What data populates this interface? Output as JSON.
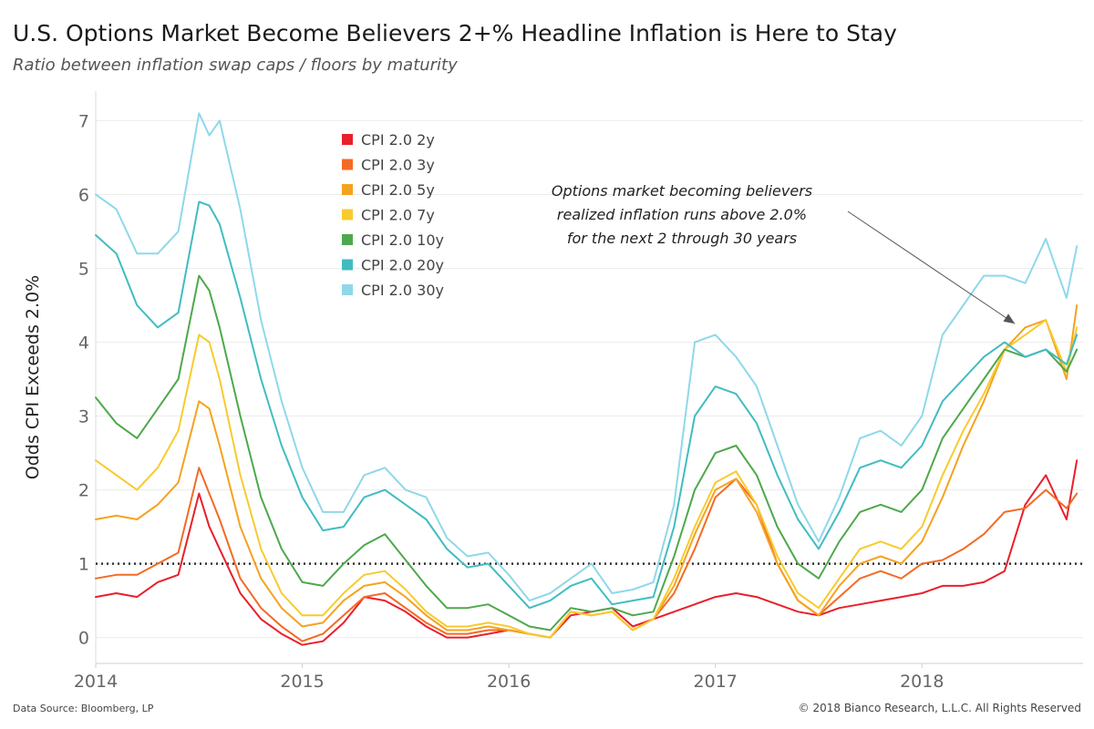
{
  "header": {
    "title": "U.S. Options Market Become Believers 2+% Headline Inflation is Here to Stay",
    "subtitle": "Ratio between inflation swap caps / floors by maturity"
  },
  "footer": {
    "source": "Data Source: Bloomberg, LP",
    "copyright": "© 2018 Bianco Research, L.L.C. All Rights Reserved"
  },
  "chart_data": {
    "type": "line",
    "title": "U.S. Options Market Become Believers 2+% Headline Inflation is Here to Stay",
    "subtitle": "Ratio between inflation swap caps / floors by maturity",
    "xlabel": "",
    "ylabel": "Odds CPI Exceeds 2.0%",
    "xlim": [
      2014.0,
      2018.78
    ],
    "ylim": [
      -0.35,
      7.4
    ],
    "x_ticks": [
      2014,
      2015,
      2016,
      2017,
      2018
    ],
    "x_tick_labels": [
      "2014",
      "2015",
      "2016",
      "2017",
      "2018"
    ],
    "y_ticks": [
      0,
      1,
      2,
      3,
      4,
      5,
      6,
      7
    ],
    "y_tick_labels": [
      "0",
      "1",
      "2",
      "3",
      "4",
      "5",
      "6",
      "7"
    ],
    "grid": "horizontal",
    "legend": "top-left",
    "reference_line": {
      "y": 1,
      "style": "dotted"
    },
    "annotation": {
      "lines": [
        "Options market becoming believers",
        "realized inflation runs above 2.0%",
        "for the next 2 through 30 years"
      ],
      "arrow_to": {
        "x": 2018.45,
        "y": 4.25
      }
    },
    "x": [
      2014.0,
      2014.1,
      2014.2,
      2014.3,
      2014.4,
      2014.5,
      2014.55,
      2014.6,
      2014.7,
      2014.8,
      2014.9,
      2015.0,
      2015.1,
      2015.2,
      2015.3,
      2015.4,
      2015.5,
      2015.6,
      2015.7,
      2015.8,
      2015.9,
      2016.0,
      2016.1,
      2016.2,
      2016.3,
      2016.4,
      2016.5,
      2016.6,
      2016.7,
      2016.8,
      2016.9,
      2017.0,
      2017.1,
      2017.2,
      2017.3,
      2017.4,
      2017.5,
      2017.6,
      2017.7,
      2017.8,
      2017.9,
      2018.0,
      2018.1,
      2018.2,
      2018.3,
      2018.4,
      2018.5,
      2018.6,
      2018.7,
      2018.75
    ],
    "series": [
      {
        "name": "CPI 2.0 2y",
        "color": "#e8202a",
        "values": [
          0.55,
          0.6,
          0.55,
          0.75,
          0.85,
          1.95,
          1.5,
          1.2,
          0.6,
          0.25,
          0.05,
          -0.1,
          -0.05,
          0.2,
          0.55,
          0.5,
          0.35,
          0.15,
          0.0,
          0.0,
          0.05,
          0.1,
          0.05,
          0.0,
          0.3,
          0.35,
          0.4,
          0.15,
          0.25,
          0.35,
          0.45,
          0.55,
          0.6,
          0.55,
          0.45,
          0.35,
          0.3,
          0.4,
          0.45,
          0.5,
          0.55,
          0.6,
          0.7,
          0.7,
          0.75,
          0.9,
          1.8,
          2.2,
          1.6,
          2.4
        ]
      },
      {
        "name": "CPI 2.0 3y",
        "color": "#f46a25",
        "values": [
          0.8,
          0.85,
          0.85,
          1.0,
          1.15,
          2.3,
          1.95,
          1.6,
          0.8,
          0.4,
          0.15,
          -0.05,
          0.05,
          0.3,
          0.55,
          0.6,
          0.4,
          0.2,
          0.05,
          0.05,
          0.1,
          0.1,
          0.05,
          0.0,
          0.35,
          0.3,
          0.35,
          0.1,
          0.25,
          0.6,
          1.2,
          1.9,
          2.15,
          1.8,
          1.0,
          0.5,
          0.3,
          0.55,
          0.8,
          0.9,
          0.8,
          1.0,
          1.05,
          1.2,
          1.4,
          1.7,
          1.75,
          2.0,
          1.75,
          1.95
        ]
      },
      {
        "name": "CPI 2.0 5y",
        "color": "#f5a21f",
        "values": [
          1.6,
          1.65,
          1.6,
          1.8,
          2.1,
          3.2,
          3.1,
          2.6,
          1.5,
          0.8,
          0.4,
          0.15,
          0.2,
          0.5,
          0.7,
          0.75,
          0.55,
          0.3,
          0.1,
          0.1,
          0.15,
          0.1,
          0.05,
          0.0,
          0.35,
          0.3,
          0.35,
          0.1,
          0.25,
          0.7,
          1.4,
          2.0,
          2.15,
          1.7,
          1.0,
          0.5,
          0.3,
          0.7,
          1.0,
          1.1,
          1.0,
          1.3,
          1.9,
          2.6,
          3.2,
          3.9,
          4.2,
          4.3,
          3.5,
          4.5
        ]
      },
      {
        "name": "CPI 2.0 7y",
        "color": "#f7cb2e",
        "values": [
          2.4,
          2.2,
          2.0,
          2.3,
          2.8,
          4.1,
          4.0,
          3.5,
          2.2,
          1.2,
          0.6,
          0.3,
          0.3,
          0.6,
          0.85,
          0.9,
          0.65,
          0.35,
          0.15,
          0.15,
          0.2,
          0.15,
          0.05,
          0.0,
          0.35,
          0.3,
          0.35,
          0.1,
          0.25,
          0.8,
          1.5,
          2.1,
          2.25,
          1.8,
          1.1,
          0.6,
          0.4,
          0.8,
          1.2,
          1.3,
          1.2,
          1.5,
          2.2,
          2.8,
          3.3,
          3.9,
          4.1,
          4.3,
          3.6,
          4.2
        ]
      },
      {
        "name": "CPI 2.0 10y",
        "color": "#4ea84c",
        "values": [
          3.25,
          2.9,
          2.7,
          3.1,
          3.5,
          4.9,
          4.7,
          4.2,
          3.0,
          1.9,
          1.2,
          0.75,
          0.7,
          1.0,
          1.25,
          1.4,
          1.05,
          0.7,
          0.4,
          0.4,
          0.45,
          0.3,
          0.15,
          0.1,
          0.4,
          0.35,
          0.4,
          0.3,
          0.35,
          1.1,
          2.0,
          2.5,
          2.6,
          2.2,
          1.5,
          1.0,
          0.8,
          1.3,
          1.7,
          1.8,
          1.7,
          2.0,
          2.7,
          3.1,
          3.5,
          3.9,
          3.8,
          3.9,
          3.6,
          3.9
        ]
      },
      {
        "name": "CPI 2.0 20y",
        "color": "#41bcc1",
        "values": [
          5.45,
          5.2,
          4.5,
          4.2,
          4.4,
          5.9,
          5.85,
          5.6,
          4.6,
          3.5,
          2.6,
          1.9,
          1.45,
          1.5,
          1.9,
          2.0,
          1.8,
          1.6,
          1.2,
          0.95,
          1.0,
          0.7,
          0.4,
          0.5,
          0.7,
          0.8,
          0.45,
          0.5,
          0.55,
          1.5,
          3.0,
          3.4,
          3.3,
          2.9,
          2.2,
          1.6,
          1.2,
          1.7,
          2.3,
          2.4,
          2.3,
          2.6,
          3.2,
          3.5,
          3.8,
          4.0,
          3.8,
          3.9,
          3.7,
          4.1
        ]
      },
      {
        "name": "CPI 2.0 30y",
        "color": "#8fd8ea",
        "values": [
          6.0,
          5.8,
          5.2,
          5.2,
          5.5,
          7.1,
          6.8,
          7.0,
          5.8,
          4.3,
          3.2,
          2.3,
          1.7,
          1.7,
          2.2,
          2.3,
          2.0,
          1.9,
          1.35,
          1.1,
          1.15,
          0.85,
          0.5,
          0.6,
          0.8,
          1.0,
          0.6,
          0.65,
          0.75,
          1.8,
          4.0,
          4.1,
          3.8,
          3.4,
          2.6,
          1.8,
          1.3,
          1.9,
          2.7,
          2.8,
          2.6,
          3.0,
          4.1,
          4.5,
          4.9,
          4.9,
          4.8,
          5.4,
          4.6,
          5.3
        ]
      }
    ]
  }
}
